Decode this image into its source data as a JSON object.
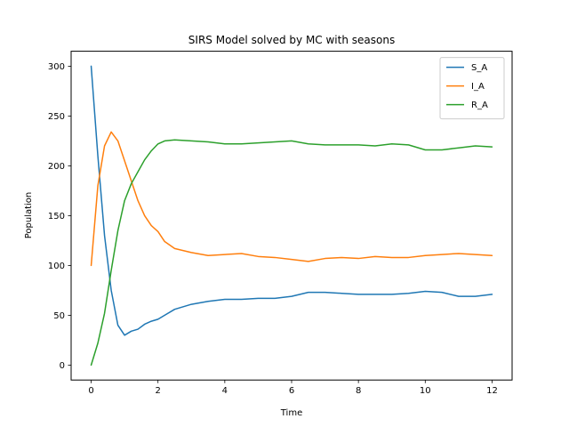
{
  "chart_data": {
    "type": "line",
    "title": "SIRS Model solved by MC with seasons",
    "xlabel": "Time",
    "ylabel": "Population",
    "xlim": [
      -0.6,
      12.6
    ],
    "ylim": [
      -15,
      315
    ],
    "xticks": [
      0,
      2,
      4,
      6,
      8,
      10,
      12
    ],
    "yticks": [
      0,
      50,
      100,
      150,
      200,
      250,
      300
    ],
    "grid": false,
    "legend_position": "top-right",
    "x": [
      0,
      0.2,
      0.4,
      0.6,
      0.8,
      1.0,
      1.2,
      1.4,
      1.6,
      1.8,
      2.0,
      2.2,
      2.5,
      3.0,
      3.5,
      4.0,
      4.5,
      5.0,
      5.5,
      6.0,
      6.5,
      7.0,
      7.5,
      8.0,
      8.5,
      9.0,
      9.5,
      10.0,
      10.5,
      11.0,
      11.5,
      12.0
    ],
    "series": [
      {
        "name": "S_A",
        "color": "#1f77b4",
        "values": [
          300,
          210,
          130,
          75,
          40,
          30,
          34,
          36,
          41,
          44,
          46,
          50,
          56,
          61,
          64,
          66,
          66,
          67,
          67,
          69,
          73,
          73,
          72,
          71,
          71,
          71,
          72,
          74,
          73,
          69,
          69,
          71
        ]
      },
      {
        "name": "I_A",
        "color": "#ff7f0e",
        "values": [
          100,
          180,
          220,
          234,
          225,
          205,
          185,
          165,
          150,
          140,
          134,
          124,
          117,
          113,
          110,
          111,
          112,
          109,
          108,
          106,
          104,
          107,
          108,
          107,
          109,
          108,
          108,
          110,
          111,
          112,
          111,
          110
        ]
      },
      {
        "name": "R_A",
        "color": "#2ca02c",
        "values": [
          0,
          22,
          52,
          95,
          135,
          165,
          182,
          194,
          206,
          215,
          222,
          225,
          226,
          225,
          224,
          222,
          222,
          223,
          224,
          225,
          222,
          221,
          221,
          221,
          220,
          222,
          221,
          216,
          216,
          218,
          220,
          219
        ]
      }
    ]
  }
}
